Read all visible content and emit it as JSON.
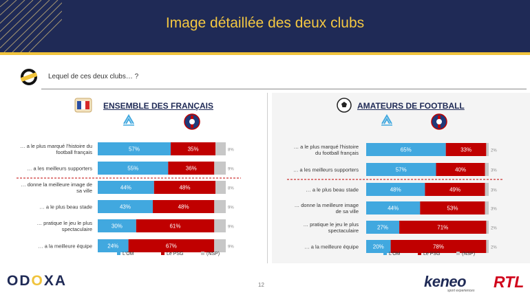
{
  "header": {
    "title": "Image détaillée des deux clubs"
  },
  "question": "Lequel de ces deux clubs… ?",
  "footer": {
    "page_number": "12",
    "logo_odoxa_a": "OD",
    "logo_odoxa_x": "O",
    "logo_odoxa_b": "XA",
    "logo_keneo": "keneo",
    "logo_keneo_sub": "sport experiences",
    "logo_rtl": "RTL"
  },
  "colors": {
    "om": "#41a8df",
    "psg": "#c00000",
    "nsp": "#c7c7c7",
    "navy": "#1f2a56",
    "gold": "#f0c33c"
  },
  "chart_data": [
    {
      "type": "bar",
      "stacked": true,
      "orientation": "horizontal",
      "title": "ENSEMBLE DES FRANÇAIS",
      "legend": [
        "L'OM",
        "Le PSG",
        "(NSP)"
      ],
      "legend_position": "bottom",
      "categories": [
        [
          "… a le plus marqué l'histoire du",
          "football français"
        ],
        [
          "… a les meilleurs supporters"
        ],
        [
          "… donne la meilleure image de",
          "sa ville"
        ],
        [
          "… a le plus beau stade"
        ],
        [
          "… pratique le jeu le plus",
          "spectaculaire"
        ],
        [
          "… a la meilleure équipe"
        ]
      ],
      "separator_after": 1,
      "series": [
        {
          "name": "L'OM",
          "values": [
            57,
            55,
            44,
            43,
            30,
            24
          ]
        },
        {
          "name": "Le PSG",
          "values": [
            35,
            36,
            48,
            48,
            61,
            67
          ]
        },
        {
          "name": "(NSP)",
          "values": [
            8,
            9,
            8,
            9,
            9,
            9
          ]
        }
      ]
    },
    {
      "type": "bar",
      "stacked": true,
      "orientation": "horizontal",
      "title": "AMATEURS DE FOOTBALL",
      "legend": [
        "L'OM",
        "Le PSG",
        "(NSP)"
      ],
      "legend_position": "bottom",
      "categories": [
        [
          "… a le plus marqué l'histoire",
          "du football français"
        ],
        [
          "… a les meilleurs supporters"
        ],
        [
          "… a le plus beau stade"
        ],
        [
          "… donne la meilleure image",
          "de sa ville"
        ],
        [
          "… pratique le jeu le plus",
          "spectaculaire"
        ],
        [
          "… a la meilleure équipe"
        ]
      ],
      "separator_after": 1,
      "series": [
        {
          "name": "L'OM",
          "values": [
            65,
            57,
            48,
            44,
            27,
            20
          ]
        },
        {
          "name": "Le PSG",
          "values": [
            33,
            40,
            49,
            53,
            71,
            78
          ]
        },
        {
          "name": "(NSP)",
          "values": [
            2,
            3,
            3,
            3,
            2,
            2
          ]
        }
      ]
    }
  ]
}
